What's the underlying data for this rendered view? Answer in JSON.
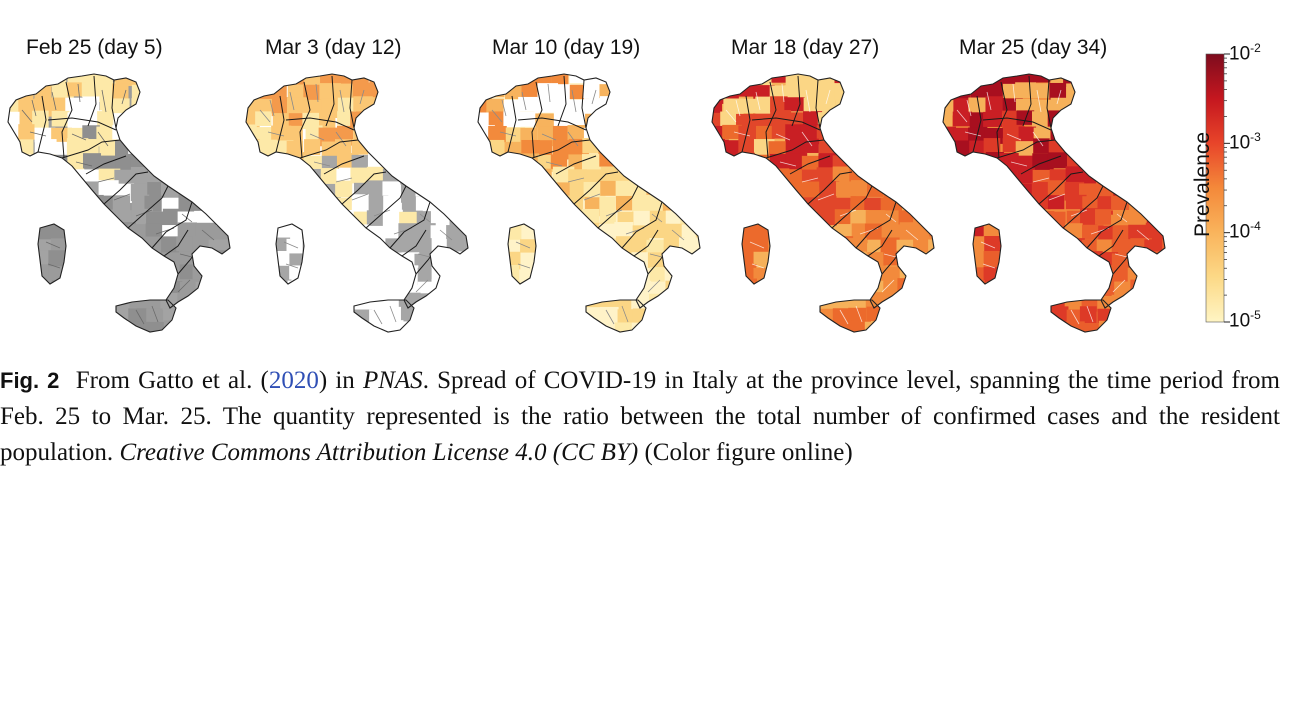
{
  "figure": {
    "panels": [
      {
        "title": "Feb 25 (day 5)",
        "palette": [
          "#9b9b9b",
          "#a3a3a3",
          "#8f8f8f",
          "#ffffff",
          "#fde9a8",
          "#fbc774"
        ]
      },
      {
        "title": "Mar 3 (day 12)",
        "palette": [
          "#ffffff",
          "#ffffff",
          "#a6a6a6",
          "#fde9a8",
          "#fbc774",
          "#f49a4c"
        ]
      },
      {
        "title": "Mar 10 (day 19)",
        "palette": [
          "#fff3c8",
          "#fde9a8",
          "#fbd685",
          "#f7b35d",
          "#f28a3c",
          "#ffffff"
        ]
      },
      {
        "title": "Mar 18 (day 27)",
        "palette": [
          "#f6b15a",
          "#f28a3c",
          "#ec6a2c",
          "#e1462a",
          "#c91f24",
          "#fbd685"
        ]
      },
      {
        "title": "Mar 25 (day 34)",
        "palette": [
          "#f28a3c",
          "#ea5e2c",
          "#dd3a27",
          "#c91f24",
          "#a80f1f",
          "#f6b15a"
        ]
      }
    ],
    "colorbar": {
      "label": "Prevalence",
      "ticks": [
        {
          "base": "10",
          "exp": "-2"
        },
        {
          "base": "10",
          "exp": "-3"
        },
        {
          "base": "10",
          "exp": "-4"
        },
        {
          "base": "10",
          "exp": "-5"
        }
      ],
      "colors": [
        "#7e0c1e",
        "#c5171f",
        "#e8452a",
        "#f4893a",
        "#f9b45c",
        "#fcd987",
        "#fff5c4"
      ],
      "scale": "log"
    }
  },
  "caption": {
    "label": "Fig. 2",
    "part1": "From Gatto et al. (",
    "ref_year": "2020",
    "part2": ") in ",
    "journal": "PNAS",
    "part3": ". Spread of COVID-19 in Italy at the province level, spanning the time period from Feb. 25 to Mar. 25. The quantity represented is the ratio between the total number of confirmed cases and the resident population. ",
    "license": "Creative Commons Attribution License 4.0 (CC BY)",
    "part4": " (Color figure online)"
  }
}
